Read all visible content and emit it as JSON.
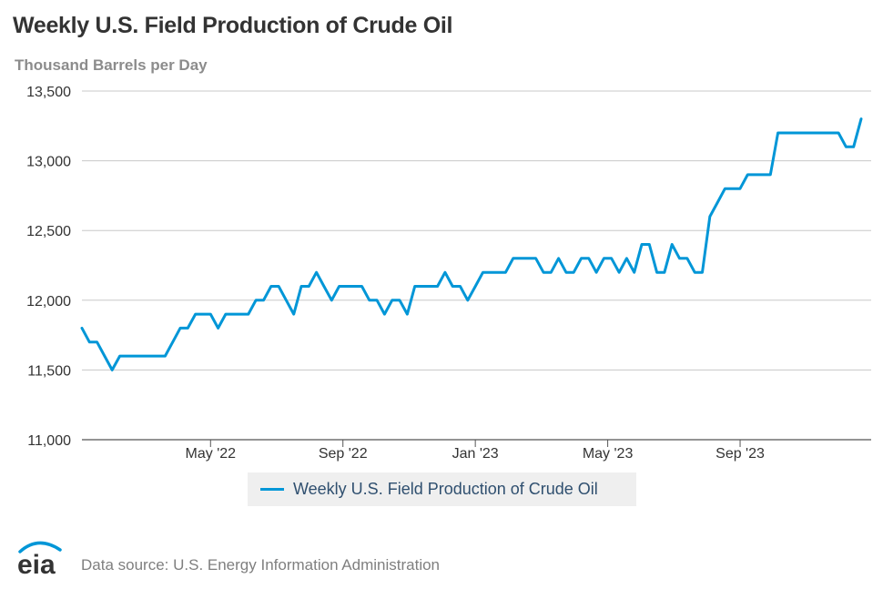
{
  "chart_data": {
    "type": "line",
    "title": "Weekly U.S. Field Production of Crude Oil",
    "subtitle": "Thousand Barrels per Day",
    "ylim": [
      11000,
      13500
    ],
    "yticks": [
      "11,000",
      "11,500",
      "12,000",
      "12,500",
      "13,000",
      "13,500"
    ],
    "ytick_values": [
      11000,
      11500,
      12000,
      12500,
      13000,
      13500
    ],
    "xticks": [
      "May '22",
      "Sep '22",
      "Jan '23",
      "May '23",
      "Sep '23"
    ],
    "xtick_week_index": [
      17,
      34.5,
      52,
      69.5,
      87
    ],
    "grid": true,
    "legend_position": "bottom-center",
    "series": [
      {
        "name": "Weekly U.S. Field Production of Crude Oil",
        "color": "#0096d7",
        "values": [
          11800,
          11700,
          11700,
          11600,
          11500,
          11600,
          11600,
          11600,
          11600,
          11600,
          11600,
          11600,
          11700,
          11800,
          11800,
          11900,
          11900,
          11900,
          11800,
          11900,
          11900,
          11900,
          11900,
          12000,
          12000,
          12100,
          12100,
          12000,
          11900,
          12100,
          12100,
          12200,
          12100,
          12000,
          12100,
          12100,
          12100,
          12100,
          12000,
          12000,
          11900,
          12000,
          12000,
          11900,
          12100,
          12100,
          12100,
          12100,
          12200,
          12100,
          12100,
          12000,
          12100,
          12200,
          12200,
          12200,
          12200,
          12300,
          12300,
          12300,
          12300,
          12200,
          12200,
          12300,
          12200,
          12200,
          12300,
          12300,
          12200,
          12300,
          12300,
          12200,
          12300,
          12200,
          12400,
          12400,
          12200,
          12200,
          12400,
          12300,
          12300,
          12200,
          12200,
          12600,
          12700,
          12800,
          12800,
          12800,
          12900,
          12900,
          12900,
          12900,
          13200,
          13200,
          13200,
          13200,
          13200,
          13200,
          13200,
          13200,
          13200,
          13100,
          13100,
          13300
        ]
      }
    ]
  },
  "legend": {
    "label": "Weekly U.S. Field Production of Crude Oil"
  },
  "footer": {
    "logo_text": "eia",
    "source": "Data source: U.S. Energy Information Administration"
  }
}
